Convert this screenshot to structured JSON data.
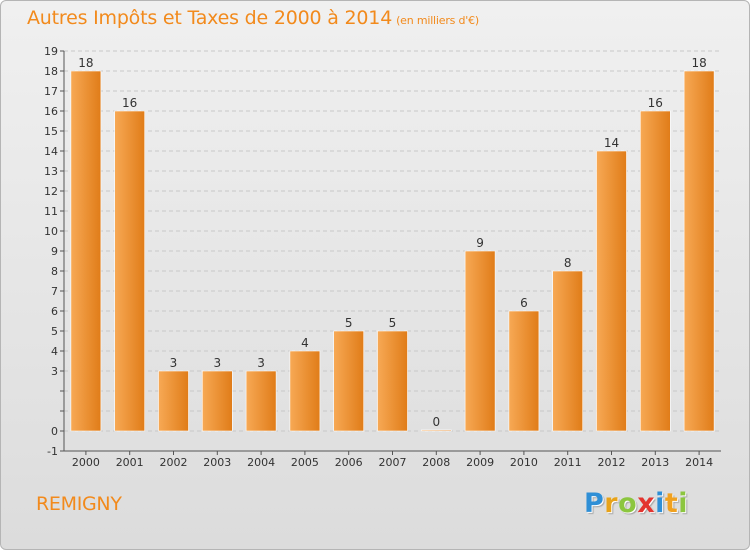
{
  "title": "Autres Impôts et Taxes de 2000 à 2014",
  "unit": "(en milliers d'€)",
  "commune": "REMIGNY",
  "logo": {
    "p": "P",
    "r": "r",
    "o": "o",
    "x": "x",
    "i1": "i",
    "t": "t",
    "i2": "i"
  },
  "colors": {
    "bar_light": "#f7a955",
    "bar_dark": "#e07c18",
    "title": "#f28a1c",
    "grid": "#c8c8c8"
  },
  "chart_data": {
    "type": "bar",
    "title": "Autres Impôts et Taxes de 2000 à 2014",
    "subtitle": "(en milliers d'€)",
    "categories": [
      "2000",
      "2001",
      "2002",
      "2003",
      "2004",
      "2005",
      "2006",
      "2007",
      "2008",
      "2009",
      "2010",
      "2011",
      "2012",
      "2013",
      "2014"
    ],
    "values": [
      18,
      16,
      3,
      3,
      3,
      4,
      5,
      5,
      0,
      9,
      6,
      8,
      14,
      16,
      18
    ],
    "ylim": [
      -1,
      19
    ],
    "yticks": [
      -1,
      0,
      1,
      2,
      3,
      4,
      5,
      6,
      7,
      8,
      9,
      10,
      11,
      12,
      13,
      14,
      15,
      16,
      17,
      18,
      19
    ],
    "ytick_labels": [
      "-1",
      "0",
      "",
      "",
      "3",
      "4",
      "5",
      "6",
      "7",
      "8",
      "9",
      "10",
      "11",
      "12",
      "13",
      "14",
      "15",
      "16",
      "17",
      "18",
      "19"
    ],
    "grid": true,
    "data_labels": true
  }
}
